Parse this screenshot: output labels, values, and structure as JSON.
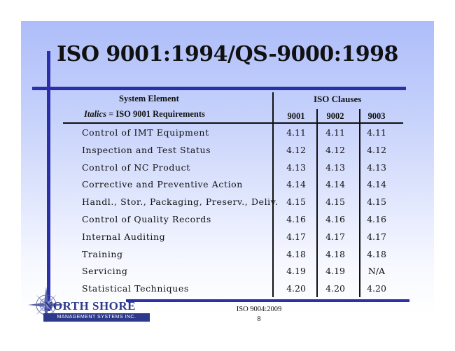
{
  "title": "ISO 9001:1994/QS-9000:1998",
  "header": {
    "system_element": "System Element",
    "italics_word": "Italics",
    "italics_rest": " = ISO 9001 Requirements",
    "iso_clauses": "ISO Clauses",
    "columns": [
      "9001",
      "9002",
      "9003"
    ]
  },
  "rows": [
    {
      "name": "Control of IMT Equipment",
      "v9001": "4.11",
      "v9002": "4.11",
      "v9003": "4.11"
    },
    {
      "name": "Inspection and Test Status",
      "v9001": "4.12",
      "v9002": "4.12",
      "v9003": "4.12"
    },
    {
      "name": "Control of NC Product",
      "v9001": "4.13",
      "v9002": "4.13",
      "v9003": "4.13"
    },
    {
      "name": "Corrective and Preventive Action",
      "v9001": "4.14",
      "v9002": "4.14",
      "v9003": "4.14"
    },
    {
      "name": "Handl., Stor., Packaging, Preserv., Deliv.",
      "v9001": "4.15",
      "v9002": "4.15",
      "v9003": "4.15"
    },
    {
      "name": "Control of Quality Records",
      "v9001": "4.16",
      "v9002": "4.16",
      "v9003": "4.16"
    },
    {
      "name": "Internal Auditing",
      "v9001": "4.17",
      "v9002": "4.17",
      "v9003": "4.17"
    },
    {
      "name": "Training",
      "v9001": "4.18",
      "v9002": "4.18",
      "v9003": "4.18"
    },
    {
      "name": "Servicing",
      "v9001": "4.19",
      "v9002": "4.19",
      "v9003": "N/A"
    },
    {
      "name": "Statistical Techniques",
      "v9001": "4.20",
      "v9002": "4.20",
      "v9003": "4.20"
    }
  ],
  "logo": {
    "brand": "NORTH SHORE",
    "subtitle": "MANAGEMENT SYSTEMS INC."
  },
  "footer": {
    "standard": "ISO 9004:2009",
    "page": "8"
  },
  "colors": {
    "accent": "#2b30a8",
    "logo": "#2d3a8c"
  }
}
